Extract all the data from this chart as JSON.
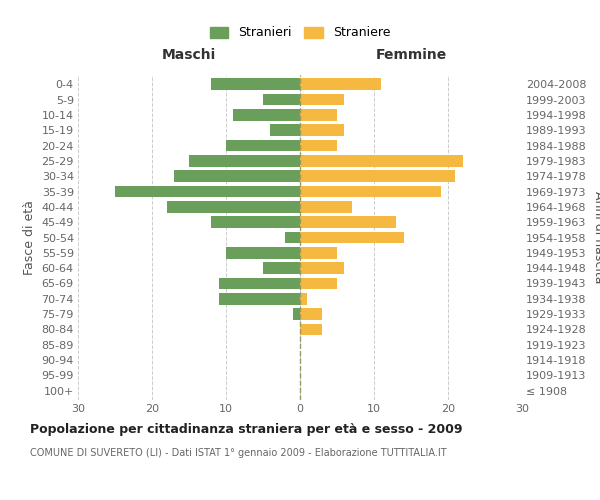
{
  "age_groups": [
    "100+",
    "95-99",
    "90-94",
    "85-89",
    "80-84",
    "75-79",
    "70-74",
    "65-69",
    "60-64",
    "55-59",
    "50-54",
    "45-49",
    "40-44",
    "35-39",
    "30-34",
    "25-29",
    "20-24",
    "15-19",
    "10-14",
    "5-9",
    "0-4"
  ],
  "birth_years": [
    "≤ 1908",
    "1909-1913",
    "1914-1918",
    "1919-1923",
    "1924-1928",
    "1929-1933",
    "1934-1938",
    "1939-1943",
    "1944-1948",
    "1949-1953",
    "1954-1958",
    "1959-1963",
    "1964-1968",
    "1969-1973",
    "1974-1978",
    "1979-1983",
    "1984-1988",
    "1989-1993",
    "1994-1998",
    "1999-2003",
    "2004-2008"
  ],
  "males": [
    0,
    0,
    0,
    0,
    0,
    1,
    11,
    11,
    5,
    10,
    2,
    12,
    18,
    25,
    17,
    15,
    10,
    4,
    9,
    5,
    12
  ],
  "females": [
    0,
    0,
    0,
    0,
    3,
    3,
    1,
    5,
    6,
    5,
    14,
    13,
    7,
    19,
    21,
    22,
    5,
    6,
    5,
    6,
    11
  ],
  "male_color": "#6a9e5b",
  "female_color": "#f5b942",
  "title": "Popolazione per cittadinanza straniera per età e sesso - 2009",
  "subtitle": "COMUNE DI SUVERETO (LI) - Dati ISTAT 1° gennaio 2009 - Elaborazione TUTTITALIA.IT",
  "left_label": "Maschi",
  "right_label": "Femmine",
  "y_left_label": "Fasce di età",
  "y_right_label": "Anni di nascita",
  "legend_male": "Stranieri",
  "legend_female": "Straniere",
  "xlim": 30,
  "background_color": "#ffffff",
  "grid_color": "#cccccc"
}
